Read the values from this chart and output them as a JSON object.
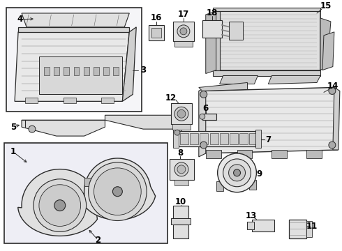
{
  "bg_color": "#ffffff",
  "line_color": "#2a2a2a",
  "label_color": "#000000",
  "fig_width": 4.9,
  "fig_height": 3.6,
  "dpi": 100,
  "label_fontsize": 8.5,
  "parts_bg": "#f0f0f0",
  "box_bg": "#e8e8f8"
}
